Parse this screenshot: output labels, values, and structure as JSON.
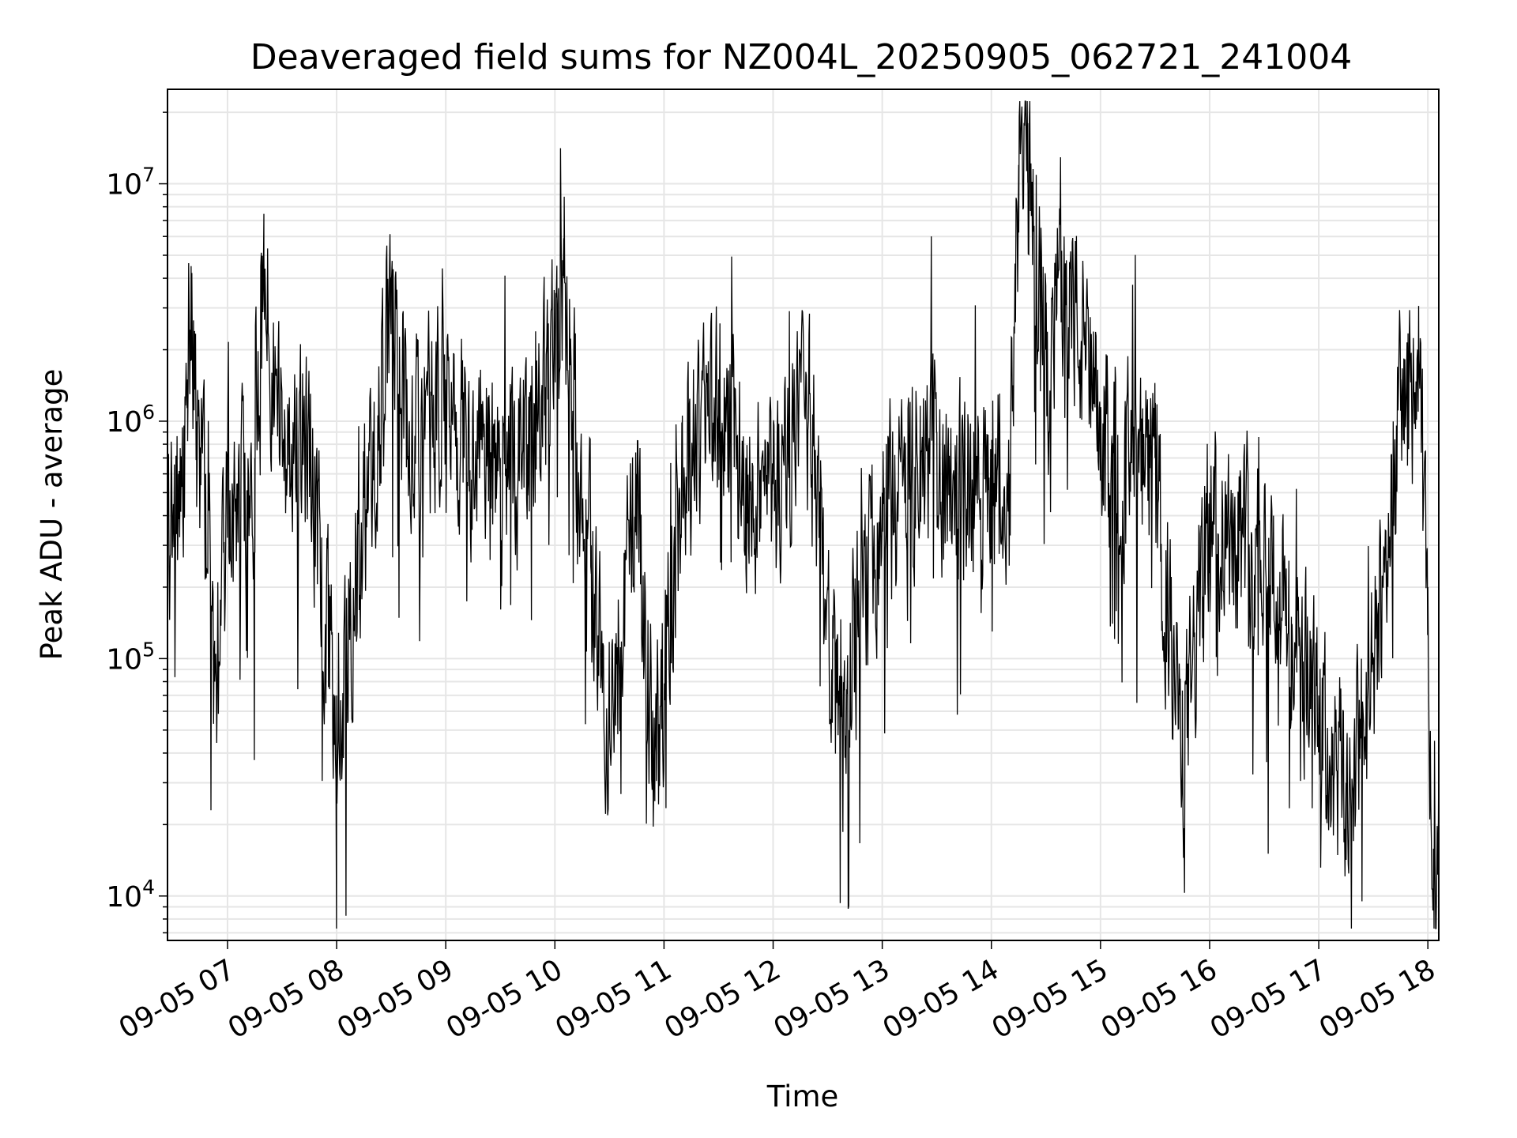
{
  "chart_data": {
    "type": "line",
    "title": "Deaveraged field sums for NZ004L_20250905_062721_241004",
    "xlabel": "Time",
    "ylabel": "Peak ADU - average",
    "x_start": "09-05 06:27",
    "x_end": "09-05 18:06",
    "xlim": [
      "09-05 06:27",
      "09-05 18:06"
    ],
    "x_ticks": [
      "09-05 07",
      "09-05 08",
      "09-05 09",
      "09-05 10",
      "09-05 11",
      "09-05 12",
      "09-05 13",
      "09-05 14",
      "09-05 15",
      "09-05 16",
      "09-05 17",
      "09-05 18"
    ],
    "y_scale": "log",
    "ylim": [
      6500,
      25000000
    ],
    "y_ticks": [
      {
        "base": "10",
        "exp": "4",
        "value": 10000
      },
      {
        "base": "10",
        "exp": "5",
        "value": 100000
      },
      {
        "base": "10",
        "exp": "6",
        "value": 1000000
      },
      {
        "base": "10",
        "exp": "7",
        "value": 10000000
      }
    ],
    "grid": true,
    "legend": "none",
    "series": [
      {
        "color": "#000000",
        "points": [
          [
            "09-05 06:27",
            500000
          ],
          [
            "09-05 06:33",
            600000
          ],
          [
            "09-05 06:38",
            1500000
          ],
          [
            "09-05 06:40",
            4500000
          ],
          [
            "09-05 06:43",
            1000000
          ],
          [
            "09-05 06:48",
            600000
          ],
          [
            "09-05 06:53",
            80000
          ],
          [
            "09-05 07:00",
            500000
          ],
          [
            "09-05 07:15",
            700000
          ],
          [
            "09-05 07:20",
            5000000
          ],
          [
            "09-05 07:30",
            1000000
          ],
          [
            "09-05 07:45",
            900000
          ],
          [
            "09-05 08:00",
            70000
          ],
          [
            "09-05 08:20",
            900000
          ],
          [
            "09-05 08:30",
            4000000
          ],
          [
            "09-05 08:40",
            1000000
          ],
          [
            "09-05 09:00",
            1500000
          ],
          [
            "09-05 09:30",
            700000
          ],
          [
            "09-05 09:45",
            800000
          ],
          [
            "09-05 10:05",
            4000000
          ],
          [
            "09-05 10:20",
            300000
          ],
          [
            "09-05 10:30",
            60000
          ],
          [
            "09-05 10:45",
            600000
          ],
          [
            "09-05 10:55",
            40000
          ],
          [
            "09-05 11:10",
            800000
          ],
          [
            "09-05 11:30",
            1500000
          ],
          [
            "09-05 11:45",
            700000
          ],
          [
            "09-05 12:00",
            600000
          ],
          [
            "09-05 12:20",
            1300000
          ],
          [
            "09-05 12:35",
            65000
          ],
          [
            "09-05 13:00",
            500000
          ],
          [
            "09-05 13:30",
            900000
          ],
          [
            "09-05 13:45",
            700000
          ],
          [
            "09-05 14:10",
            600000
          ],
          [
            "09-05 14:15",
            12000000
          ],
          [
            "09-05 14:20",
            18000000
          ],
          [
            "09-05 14:30",
            2000000
          ],
          [
            "09-05 14:40",
            6000000
          ],
          [
            "09-05 15:00",
            1000000
          ],
          [
            "09-05 15:30",
            700000
          ],
          [
            "09-05 15:45",
            45000
          ],
          [
            "09-05 16:00",
            500000
          ],
          [
            "09-05 16:30",
            400000
          ],
          [
            "09-05 16:45",
            150000
          ],
          [
            "09-05 17:00",
            70000
          ],
          [
            "09-05 17:15",
            30000
          ],
          [
            "09-05 17:30",
            100000
          ],
          [
            "09-05 17:45",
            1500000
          ],
          [
            "09-05 17:55",
            1800000
          ],
          [
            "09-05 18:00",
            200000
          ],
          [
            "09-05 18:03",
            9000
          ],
          [
            "09-05 18:06",
            25000
          ]
        ]
      }
    ]
  }
}
